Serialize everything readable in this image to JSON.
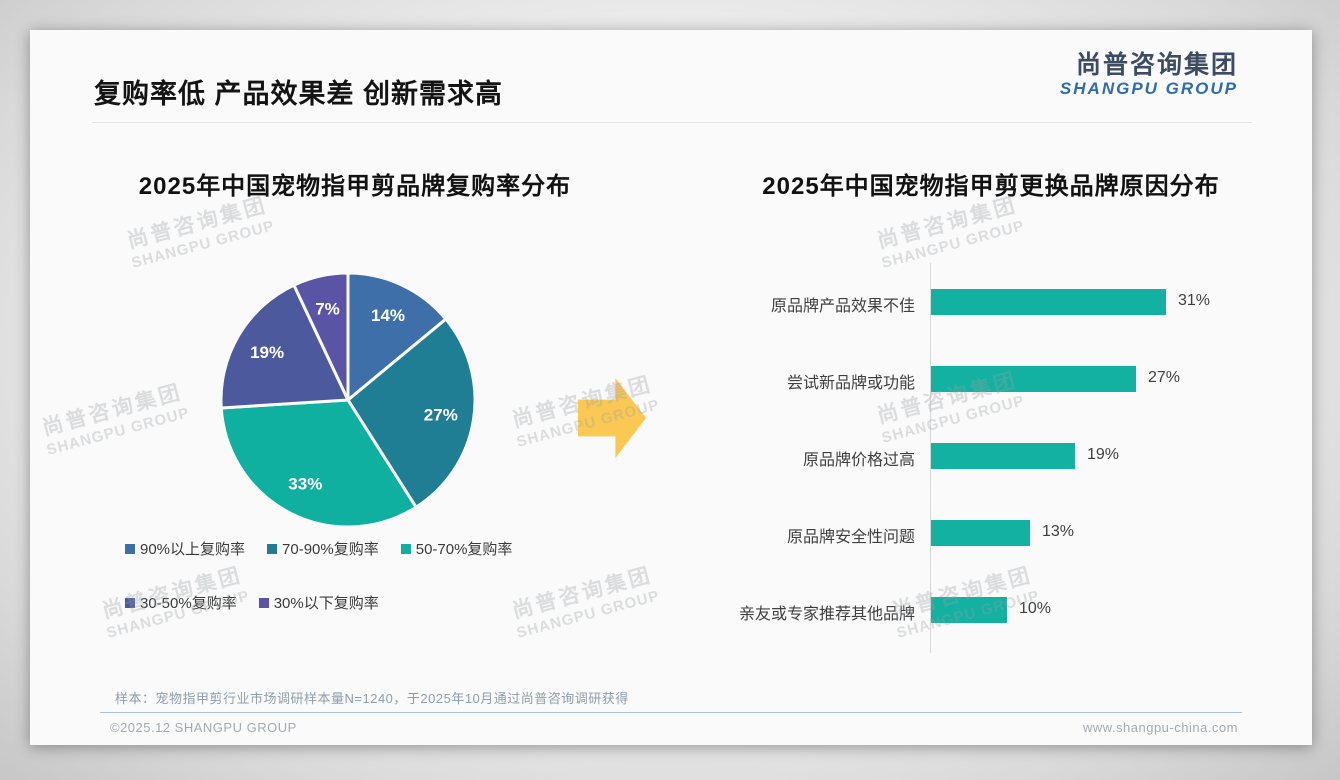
{
  "page": {
    "title": "复购率低 产品效果差 创新需求高",
    "logo": {
      "cn": "尚普咨询集团",
      "en": "SHANGPU GROUP"
    },
    "watermark": {
      "cn": "尚普咨询集团",
      "en": "SHANGPU GROUP"
    },
    "footnote": "样本：宠物指甲剪行业市场调研样本量N=1240，于2025年10月通过尚普咨询调研获得",
    "footer_left": "©2025.12 SHANGPU GROUP",
    "footer_right": "www.shangpu-china.com"
  },
  "colors": {
    "card_bg": "#fafafa",
    "logo_cn": "#3c4c63",
    "logo_en": "#2e6bb0",
    "arrow": "#FBC854",
    "bar": "#12B1A1",
    "axis": "#d7d7d7",
    "footnote_text": "#8f9dab"
  },
  "chart_data": [
    {
      "type": "pie",
      "title": "2025年中国宠物指甲剪品牌复购率分布",
      "labels": [
        "90%以上复购率",
        "70-90%复购率",
        "50-70%复购率",
        "30-50%复购率",
        "30%以下复购率"
      ],
      "values": [
        14,
        27,
        33,
        19,
        7
      ],
      "slice_colors": [
        "#3E6FA9",
        "#1F7E93",
        "#10B0A0",
        "#4C599C",
        "#5A54A5"
      ],
      "data_labels": [
        "14%",
        "27%",
        "33%",
        "19%",
        "7%"
      ],
      "legend_position": "bottom",
      "start_angle_deg": 0,
      "direction": "clockwise"
    },
    {
      "type": "bar",
      "title": "2025年中国宠物指甲剪更换品牌原因分布",
      "orientation": "horizontal",
      "categories": [
        "原品牌产品效果不佳",
        "尝试新品牌或功能",
        "原品牌价格过高",
        "原品牌安全性问题",
        "亲友或专家推荐其他品牌"
      ],
      "values": [
        31,
        27,
        19,
        13,
        10
      ],
      "value_labels": [
        "31%",
        "27%",
        "19%",
        "13%",
        "10%"
      ],
      "bar_color": "#12B1A1",
      "xlim": [
        0,
        31
      ],
      "grid": false,
      "legend": false
    }
  ]
}
